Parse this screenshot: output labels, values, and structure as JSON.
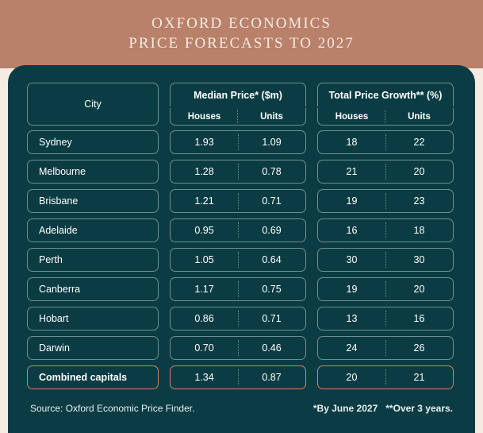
{
  "title_line1": "OXFORD ECONOMICS",
  "title_line2": "PRICE FORECASTS TO 2027",
  "colors": {
    "header_band": "#b9806a",
    "header_text": "#f5ebe3",
    "panel_bg": "#0b3c44",
    "cell_border": "#6e8f92",
    "highlight_border": "#c9875f",
    "page_bg": "#f5ebe3",
    "text": "#ffffff"
  },
  "columns": {
    "city": "City",
    "group1": "Median Price* ($m)",
    "group2": "Total Price Growth** (%)",
    "sub_houses": "Houses",
    "sub_units": "Units"
  },
  "rows": [
    {
      "city": "Sydney",
      "mp_h": "1.93",
      "mp_u": "1.09",
      "g_h": "18",
      "g_u": "22",
      "highlight": false
    },
    {
      "city": "Melbourne",
      "mp_h": "1.28",
      "mp_u": "0.78",
      "g_h": "21",
      "g_u": "20",
      "highlight": false
    },
    {
      "city": "Brisbane",
      "mp_h": "1.21",
      "mp_u": "0.71",
      "g_h": "19",
      "g_u": "23",
      "highlight": false
    },
    {
      "city": "Adelaide",
      "mp_h": "0.95",
      "mp_u": "0.69",
      "g_h": "16",
      "g_u": "18",
      "highlight": false
    },
    {
      "city": "Perth",
      "mp_h": "1.05",
      "mp_u": "0.64",
      "g_h": "30",
      "g_u": "30",
      "highlight": false
    },
    {
      "city": "Canberra",
      "mp_h": "1.17",
      "mp_u": "0.75",
      "g_h": "19",
      "g_u": "20",
      "highlight": false
    },
    {
      "city": "Hobart",
      "mp_h": "0.86",
      "mp_u": "0.71",
      "g_h": "13",
      "g_u": "16",
      "highlight": false
    },
    {
      "city": "Darwin",
      "mp_h": "0.70",
      "mp_u": "0.46",
      "g_h": "24",
      "g_u": "26",
      "highlight": false
    },
    {
      "city": "Combined capitals",
      "mp_h": "1.34",
      "mp_u": "0.87",
      "g_h": "20",
      "g_u": "21",
      "highlight": true
    }
  ],
  "footer": {
    "source": "Source:  Oxford Economic Price Finder.",
    "note1": "*By June 2027",
    "note2": "**Over 3 years."
  }
}
